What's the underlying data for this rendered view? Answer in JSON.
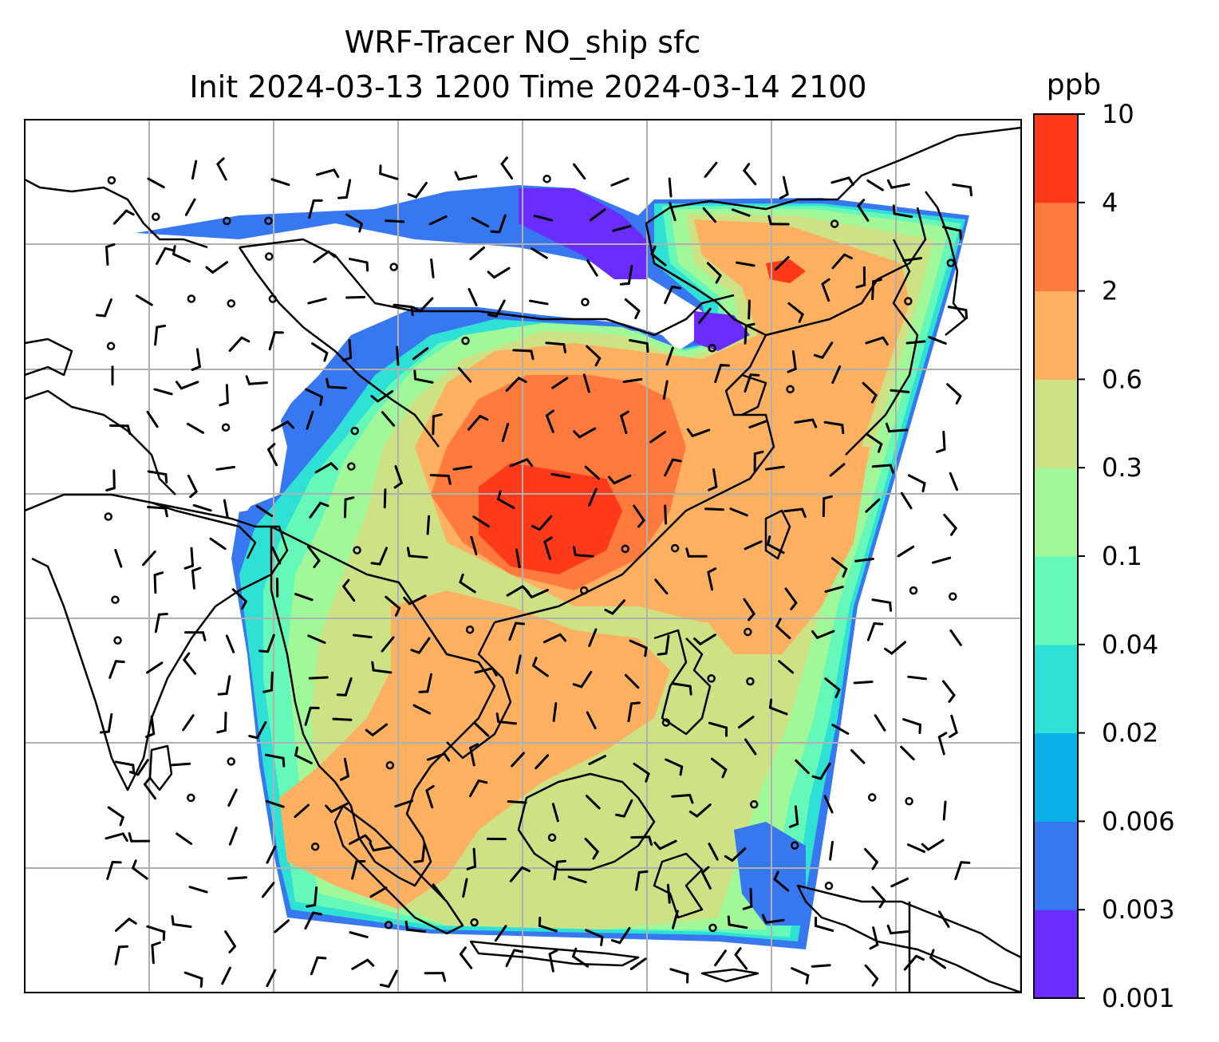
{
  "title": {
    "line1": "WRF-Tracer NO_ship sfc",
    "line2": "Init 2024-03-13 1200 Time 2024-03-14 2100"
  },
  "colorbar": {
    "unit": "ppb",
    "levels": [
      "0.001",
      "0.003",
      "0.006",
      "0.02",
      "0.04",
      "0.1",
      "0.3",
      "0.6",
      "2",
      "4",
      "10"
    ],
    "colors": [
      "#6a2cff",
      "#3778f0",
      "#0cb0e8",
      "#2fe0d4",
      "#66f8b8",
      "#a0f898",
      "#cde284",
      "#ffb060",
      "#ff7a3c",
      "#ff3a1a"
    ]
  },
  "map": {
    "background": "#ffffff",
    "coastline_color": "#000000",
    "gridline_color": "#b0b0b0",
    "wind_barb_color": "#000000"
  }
}
